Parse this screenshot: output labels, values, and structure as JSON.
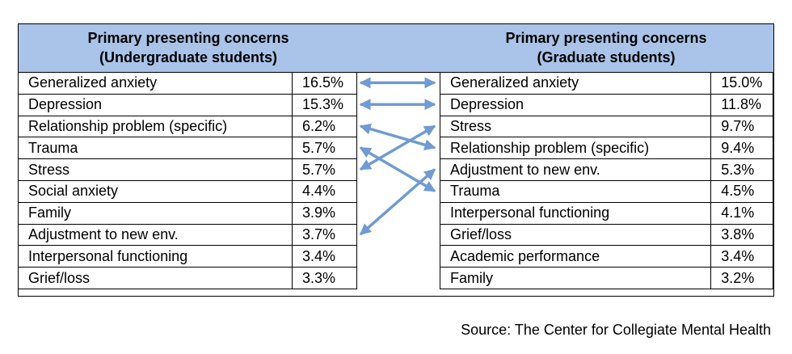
{
  "chart_data": {
    "type": "table",
    "left": {
      "title_line1": "Primary presenting concerns",
      "title_line2": "(Undergraduate students)",
      "rows": [
        {
          "name": "Generalized anxiety",
          "pct": "16.5%"
        },
        {
          "name": "Depression",
          "pct": "15.3%"
        },
        {
          "name": "Relationship problem (specific)",
          "pct": "6.2%"
        },
        {
          "name": "Trauma",
          "pct": "5.7%"
        },
        {
          "name": "Stress",
          "pct": "5.7%"
        },
        {
          "name": "Social anxiety",
          "pct": "4.4%"
        },
        {
          "name": "Family",
          "pct": "3.9%"
        },
        {
          "name": "Adjustment to new env.",
          "pct": "3.7%"
        },
        {
          "name": "Interpersonal functioning",
          "pct": "3.4%"
        },
        {
          "name": "Grief/loss",
          "pct": "3.3%"
        }
      ]
    },
    "right": {
      "title_line1": "Primary presenting concerns",
      "title_line2": "(Graduate students)",
      "rows": [
        {
          "name": "Generalized anxiety",
          "pct": "15.0%"
        },
        {
          "name": "Depression",
          "pct": "11.8%"
        },
        {
          "name": "Stress",
          "pct": "9.7%"
        },
        {
          "name": "Relationship problem (specific)",
          "pct": "9.4%"
        },
        {
          "name": "Adjustment to new env.",
          "pct": "5.3%"
        },
        {
          "name": "Trauma",
          "pct": "4.5%"
        },
        {
          "name": "Interpersonal functioning",
          "pct": "4.1%"
        },
        {
          "name": "Grief/loss",
          "pct": "3.8%"
        },
        {
          "name": "Academic performance",
          "pct": "3.4%"
        },
        {
          "name": "Family",
          "pct": "3.2%"
        }
      ]
    },
    "links": [
      {
        "from": 0,
        "to": 0,
        "bidirectional": true
      },
      {
        "from": 1,
        "to": 1,
        "bidirectional": true
      },
      {
        "from": 2,
        "to": 3,
        "bidirectional": true
      },
      {
        "from": 3,
        "to": 5,
        "bidirectional": true
      },
      {
        "from": 4,
        "to": 2,
        "bidirectional": true
      },
      {
        "from": 7,
        "to": 4,
        "bidirectional": true
      }
    ],
    "arrow_color": "#6f9bd1",
    "header_color": "#a9c4e8"
  },
  "source": "Source: The Center for Collegiate Mental Health"
}
